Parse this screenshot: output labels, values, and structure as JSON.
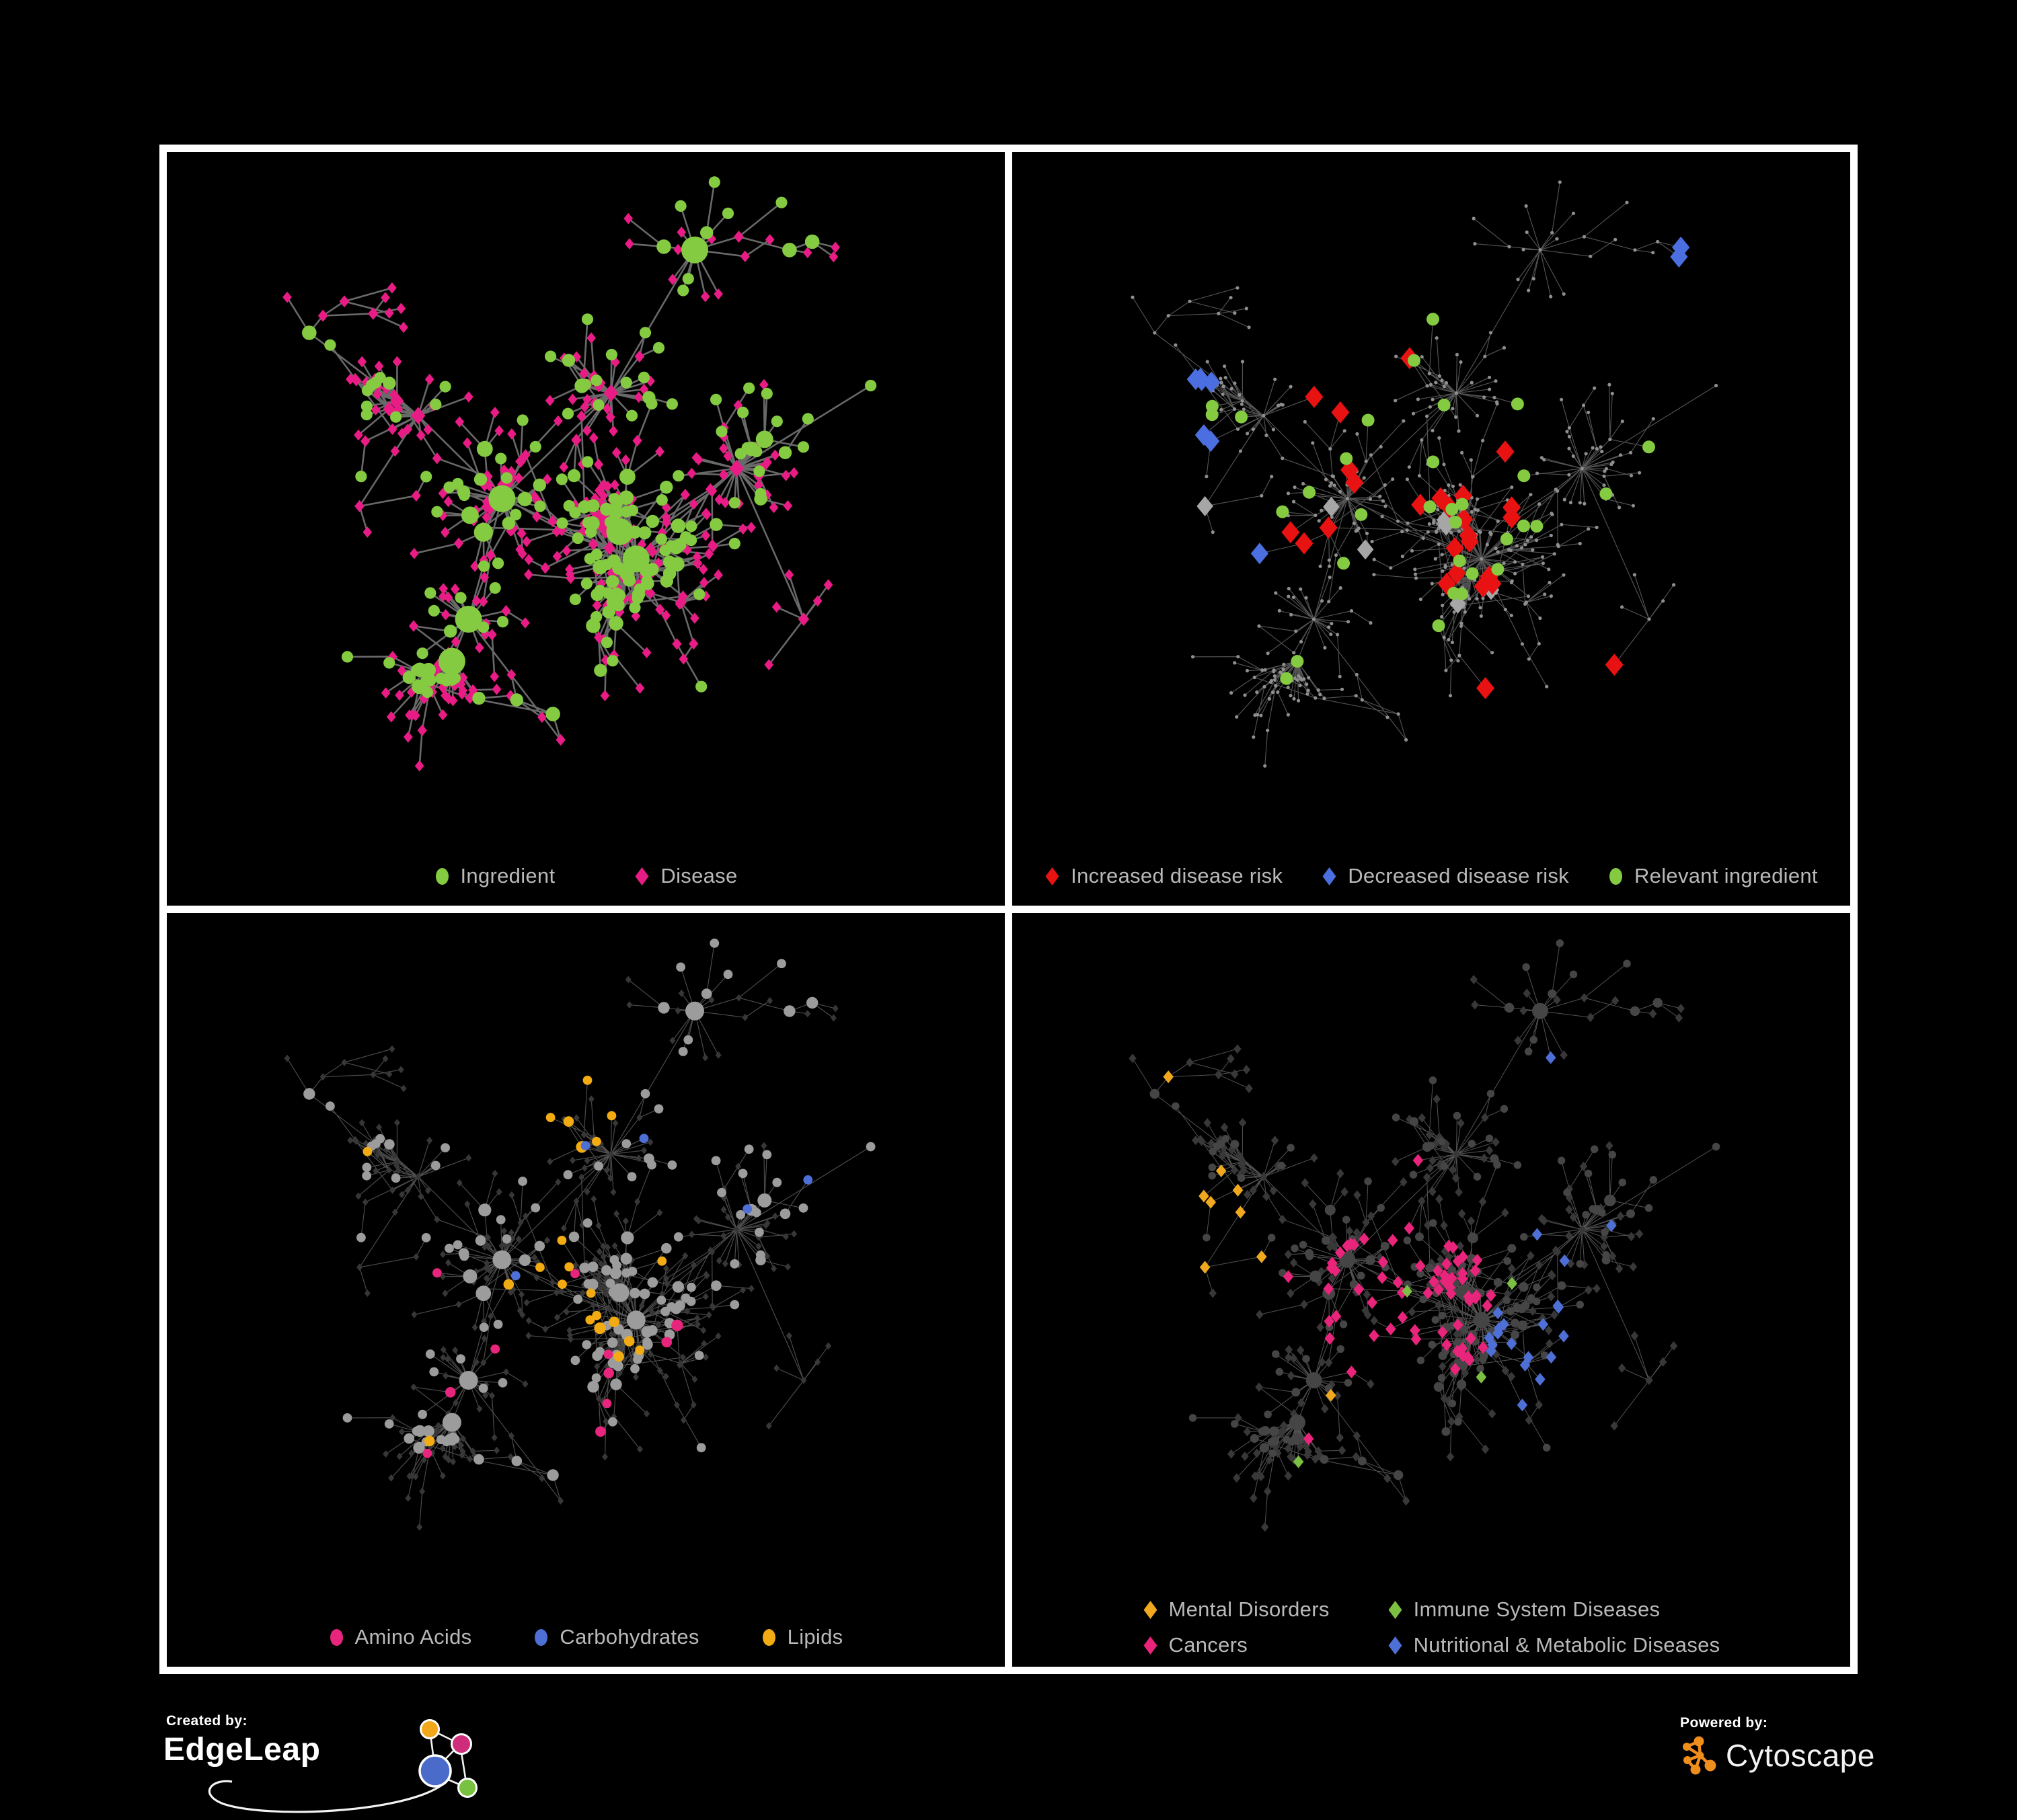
{
  "page": {
    "background": "#000000",
    "frame_color": "#ffffff",
    "legend_text_color": "#b9b9b9"
  },
  "panels": [
    {
      "id": "ingredient-disease",
      "columns": 1,
      "legend": [
        {
          "label": "Ingredient",
          "shape": "circle",
          "color": "#85cb41"
        },
        {
          "label": "Disease",
          "shape": "diamond",
          "color": "#e91c86"
        }
      ],
      "style": {
        "edge": "#6f6f6f",
        "edge_width": 2.6
      }
    },
    {
      "id": "disease-risk",
      "columns": 1,
      "legend": [
        {
          "label": "Increased disease risk",
          "shape": "diamond",
          "color": "#e81212"
        },
        {
          "label": "Decreased disease risk",
          "shape": "diamond",
          "color": "#4b6fe0"
        },
        {
          "label": "Relevant ingredient",
          "shape": "circle",
          "color": "#85cb41"
        }
      ],
      "style": {
        "edge": "#616161",
        "edge_width": 1.15,
        "base_node": "#8f8f8f",
        "neutral_diamond": "#a6a6a6"
      }
    },
    {
      "id": "ingredient-classes",
      "columns": 1,
      "legend": [
        {
          "label": "Amino Acids",
          "shape": "circle",
          "color": "#e8257d"
        },
        {
          "label": "Carbohydrates",
          "shape": "circle",
          "color": "#4e6fd6"
        },
        {
          "label": "Lipids",
          "shape": "circle",
          "color": "#f2ab13"
        }
      ],
      "style": {
        "edge": "#5a5a5a",
        "edge_width": 1.15,
        "base_circle": "#9c9c9c",
        "dim_diamond": "#373737"
      }
    },
    {
      "id": "disease-categories",
      "columns": 2,
      "legend": [
        {
          "label": "Mental Disorders",
          "shape": "diamond",
          "color": "#f0a81f"
        },
        {
          "label": "Immune System Diseases",
          "shape": "diamond",
          "color": "#7cc043"
        },
        {
          "label": "Cancers",
          "shape": "diamond",
          "color": "#e8247b"
        },
        {
          "label": "Nutritional & Metabolic Diseases",
          "shape": "diamond",
          "color": "#4e6fd6"
        }
      ],
      "style": {
        "edge": "#616161",
        "edge_width": 1.0,
        "dim_diamond": "#383838",
        "dim_circle": "#454545"
      }
    }
  ],
  "footer": {
    "created_by_label": "Created by:",
    "created_by_name": "EdgeLeap",
    "powered_by_label": "Powered by:",
    "powered_by_name": "Cytoscape",
    "edgeleap_logo_colors": {
      "orange": "#f2a71b",
      "pink": "#cf2d7c",
      "blue": "#4a6bc9",
      "green": "#78c141"
    },
    "cytoscape_logo_color": "#ef8d1d"
  },
  "chart_data": [
    {
      "type": "network",
      "view": "ingredient-disease",
      "title": "",
      "legend": [
        "Ingredient",
        "Disease"
      ],
      "legend_position": "bottom-center",
      "node_shapes": {
        "circle": "Ingredient",
        "diamond": "Disease"
      },
      "node_colors": {
        "Ingredient": "#85cb41",
        "Disease": "#e91c86"
      },
      "approx_counts": {
        "Ingredient": 185,
        "Disease": 375,
        "edges": 615
      },
      "edge_color": "#6f6f6f",
      "background": "#000000",
      "layout": "organic force-directed hub-and-spoke"
    },
    {
      "type": "network",
      "view": "disease-risk-highlights",
      "title": "",
      "legend": [
        "Increased disease risk",
        "Decreased disease risk",
        "Relevant ingredient"
      ],
      "legend_position": "bottom-center",
      "highlight_colors": {
        "Increased disease risk": "#e81212",
        "Decreased disease risk": "#4b6fe0",
        "Relevant ingredient": "#85cb41",
        "neutral": "#a6a6a6"
      },
      "approx_counts": {
        "increased": 26,
        "decreased": 9,
        "relevant_ingredient": 32,
        "neutral_gray": 7
      },
      "base_network": "same topology as other panels, dimmed gray dots",
      "background": "#000000"
    },
    {
      "type": "network",
      "view": "ingredient-classes",
      "title": "",
      "legend": [
        "Amino Acids",
        "Carbohydrates",
        "Lipids"
      ],
      "legend_position": "bottom-center",
      "highlight_colors": {
        "Amino Acids": "#e8257d",
        "Carbohydrates": "#4e6fd6",
        "Lipids": "#f2ab13",
        "other_ingredient": "#9c9c9c",
        "disease": "#373737"
      },
      "approx_counts": {
        "amino_acids": 15,
        "carbohydrates": 12,
        "lipids": 60
      },
      "background": "#000000"
    },
    {
      "type": "network",
      "view": "disease-categories",
      "title": "",
      "legend": [
        "Mental Disorders",
        "Immune System Diseases",
        "Cancers",
        "Nutritional & Metabolic Diseases"
      ],
      "legend_position": "bottom-center-2col",
      "highlight_colors": {
        "Mental Disorders": "#f0a81f",
        "Immune System Diseases": "#7cc043",
        "Cancers": "#e8247b",
        "Nutritional & Metabolic Diseases": "#4e6fd6",
        "other_disease": "#383838",
        "ingredient": "#454545"
      },
      "approx_counts": {
        "mental": 70,
        "immune": 8,
        "cancers": 45,
        "nutritional": 55
      },
      "background": "#000000"
    }
  ],
  "render_hints": {
    "seed": 9,
    "nodes": 560,
    "extra_edges": 46,
    "shared_layout": true,
    "view_w": 1246,
    "view_h": 1121
  }
}
